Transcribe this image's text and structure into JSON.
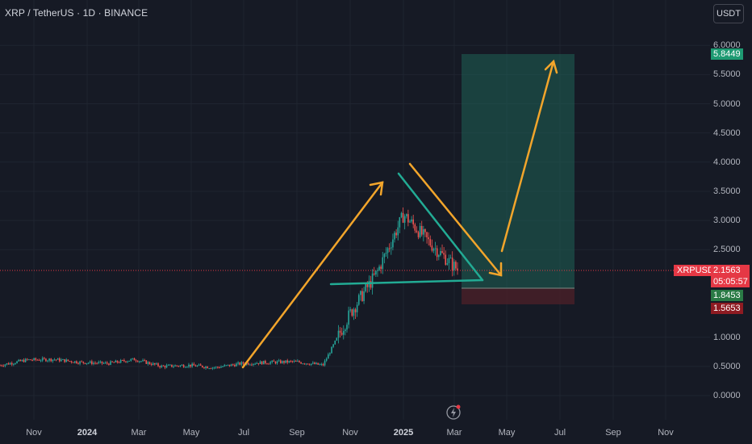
{
  "header": {
    "symbol_title": "XRP / TetherUS · 1D · BINANCE",
    "currency_button": "USDT"
  },
  "price_axis": {
    "ticks": [
      "6.0000",
      "5.5000",
      "5.0000",
      "4.5000",
      "4.0000",
      "3.5000",
      "3.0000",
      "2.5000",
      "1.0000",
      "0.5000",
      "0.0000"
    ],
    "target_label": "5.8449",
    "entry_label": "1.8453",
    "stop_label": "1.5653",
    "symbol_badge": "XRPUSDT",
    "last_price": "2.1563",
    "countdown": "05:05:57"
  },
  "time_axis": {
    "ticks": [
      "Nov",
      "2024",
      "Mar",
      "May",
      "Jul",
      "Sep",
      "Nov",
      "2025",
      "Mar",
      "May",
      "Jul",
      "Sep",
      "Nov"
    ]
  },
  "colors": {
    "background": "#161a25",
    "candle_up": "#26a69a",
    "candle_down": "#ef5350",
    "arrow_orange": "#f2a52b",
    "triangle_teal": "#22ab94",
    "target_zone": "#1e5c52",
    "stop_zone": "#4a1f28",
    "last_price_line": "#e53845"
  },
  "chart_data": {
    "type": "candlestick",
    "symbol": "XRP / TetherUS",
    "interval": "1D",
    "exchange": "BINANCE",
    "quote_currency": "USDT",
    "ylim": [
      0,
      6.0
    ],
    "last_price": 2.1563,
    "position": {
      "entry": 1.8453,
      "target": 5.8449,
      "stop": 1.5653
    },
    "approx_close_series": [
      {
        "date": "2023-10",
        "close": 0.52
      },
      {
        "date": "2023-11",
        "close": 0.61
      },
      {
        "date": "2023-12",
        "close": 0.62
      },
      {
        "date": "2024-01",
        "close": 0.57
      },
      {
        "date": "2024-02",
        "close": 0.55
      },
      {
        "date": "2024-03",
        "close": 0.62
      },
      {
        "date": "2024-04",
        "close": 0.5
      },
      {
        "date": "2024-05",
        "close": 0.52
      },
      {
        "date": "2024-06",
        "close": 0.48
      },
      {
        "date": "2024-07",
        "close": 0.55
      },
      {
        "date": "2024-08",
        "close": 0.57
      },
      {
        "date": "2024-09",
        "close": 0.58
      },
      {
        "date": "2024-10",
        "close": 0.52
      },
      {
        "date": "2024-11",
        "close": 1.4
      },
      {
        "date": "2024-12",
        "close": 2.1
      },
      {
        "date": "2025-01",
        "close": 3.1
      },
      {
        "date": "2025-02",
        "close": 2.6
      },
      {
        "date": "2025-03",
        "close": 2.16
      }
    ]
  }
}
